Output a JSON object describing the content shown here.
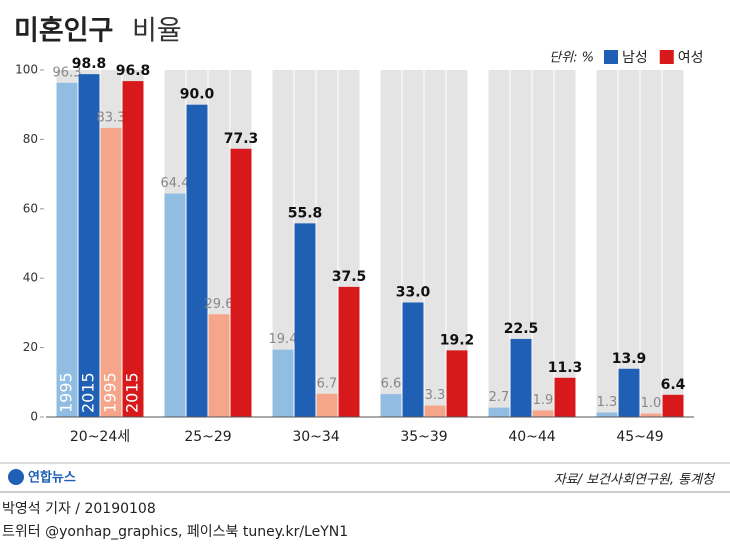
{
  "chart_data": {
    "type": "bar",
    "title": "미혼인구",
    "subtitle": "비율",
    "unit": "단위: %",
    "legend": [
      {
        "name": "남성",
        "color": "#1f5fb4"
      },
      {
        "name": "여성",
        "color": "#d7191c"
      }
    ],
    "categories": [
      "20~24세",
      "25~29",
      "30~34",
      "35~39",
      "40~44",
      "45~49"
    ],
    "series": [
      {
        "name": "1995",
        "color": "#92bde3",
        "values": [
          96.3,
          64.4,
          19.4,
          6.6,
          2.7,
          1.3
        ],
        "value_labels": [
          "96.3",
          "64.4",
          "19.4",
          "6.6",
          "2.7",
          "1.3"
        ]
      },
      {
        "name": "2015",
        "color": "#1f5fb4",
        "values": [
          98.8,
          90.0,
          55.8,
          33.0,
          22.5,
          13.9
        ],
        "value_labels": [
          "98.8",
          "90.0",
          "55.8",
          "33.0",
          "22.5",
          "13.9"
        ]
      },
      {
        "name": "1995",
        "color": "#f4a58a",
        "values": [
          83.3,
          29.6,
          6.7,
          3.3,
          1.9,
          1.0
        ],
        "value_labels": [
          "83.3",
          "29.6",
          "6.7",
          "3.3",
          "1.9",
          "1.0"
        ]
      },
      {
        "name": "2015",
        "color": "#d7191c",
        "values": [
          96.8,
          77.3,
          37.5,
          19.2,
          11.3,
          6.4
        ],
        "value_labels": [
          "96.8",
          "77.3",
          "37.5",
          "19.2",
          "11.3",
          "6.4"
        ]
      }
    ],
    "ylim": [
      0,
      100
    ],
    "yticks": [
      0,
      20,
      40,
      60,
      80,
      100
    ],
    "source": "자료/ 보건사회연구원, 통계청",
    "logo": "연합뉴스",
    "byline": "박영석 기자 / 20190108",
    "social": "트위터 @yonhap_graphics, 페이스북 tuney.kr/LeYN1"
  }
}
